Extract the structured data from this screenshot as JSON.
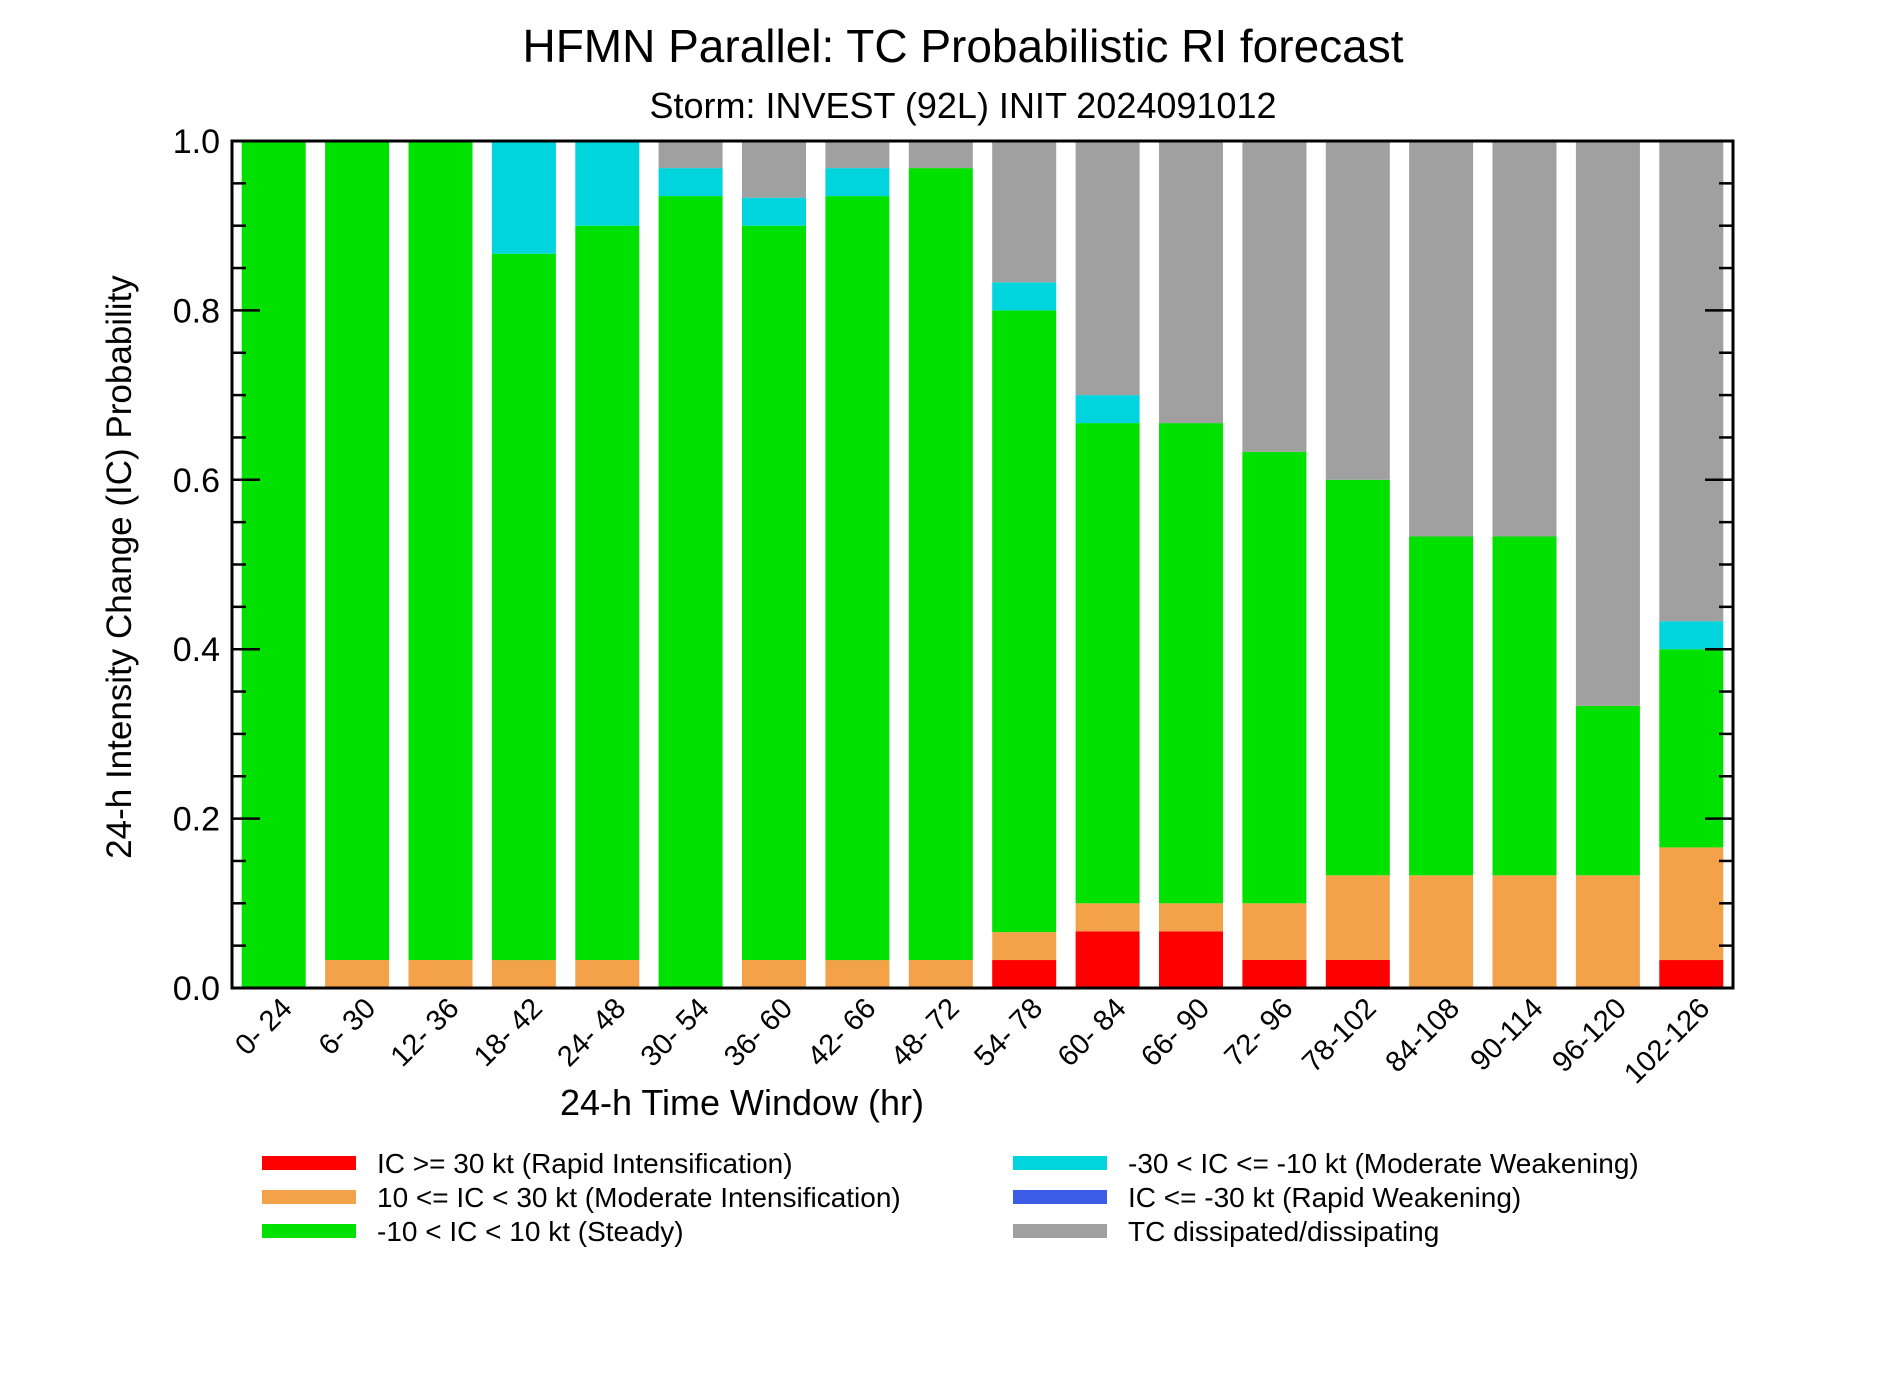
{
  "chart_data": {
    "type": "bar",
    "stacked": true,
    "title": "HFMN Parallel: TC Probabilistic RI forecast",
    "subtitle": "Storm: INVEST (92L) INIT 2024091012",
    "xlabel": "24-h Time Window (hr)",
    "ylabel": "24-h Intensity Change (IC) Probability",
    "ylim": [
      0,
      1.0
    ],
    "yticks": [
      "0.0",
      "0.2",
      "0.4",
      "0.6",
      "0.8",
      "1.0"
    ],
    "grid": false,
    "legend_position": "bottom",
    "categories": [
      "0- 24",
      "6- 30",
      "12- 36",
      "18- 42",
      "24- 48",
      "30- 54",
      "36- 60",
      "42- 66",
      "48- 72",
      "54- 78",
      "60- 84",
      "66- 90",
      "72- 96",
      "78-102",
      "84-108",
      "90-114",
      "96-120",
      "102-126"
    ],
    "series": [
      {
        "name": "IC >= 30 kt (Rapid Intensification)",
        "color": "#ff0000",
        "values": [
          0,
          0,
          0,
          0,
          0,
          0,
          0,
          0,
          0,
          0.033,
          0.067,
          0.067,
          0.033,
          0.033,
          0,
          0,
          0,
          0.033
        ]
      },
      {
        "name": "10 <= IC < 30 kt (Moderate Intensification)",
        "color": "#f4a24a",
        "values": [
          0,
          0.033,
          0.033,
          0.033,
          0.033,
          0,
          0.033,
          0.033,
          0.033,
          0.033,
          0.033,
          0.033,
          0.067,
          0.1,
          0.133,
          0.133,
          0.133,
          0.133
        ]
      },
      {
        "name": "-10 < IC < 10 kt (Steady)",
        "color": "#00e100",
        "values": [
          1.0,
          0.967,
          0.967,
          0.834,
          0.867,
          0.935,
          0.867,
          0.902,
          0.935,
          0.734,
          0.567,
          0.567,
          0.533,
          0.467,
          0.4,
          0.4,
          0.2,
          0.234
        ]
      },
      {
        "name": "-30 < IC <= -10 kt (Moderate Weakening)",
        "color": "#00d4dc",
        "values": [
          0,
          0,
          0,
          0.133,
          0.1,
          0.033,
          0.033,
          0.033,
          0,
          0.033,
          0.033,
          0,
          0,
          0,
          0,
          0,
          0,
          0.033
        ]
      },
      {
        "name": "IC <= -30 kt (Rapid Weakening)",
        "color": "#3a5ce6",
        "values": [
          0,
          0,
          0,
          0,
          0,
          0,
          0,
          0,
          0,
          0,
          0,
          0,
          0,
          0,
          0,
          0,
          0,
          0
        ]
      },
      {
        "name": "TC dissipated/dissipating",
        "color": "#a0a0a0",
        "values": [
          0,
          0,
          0,
          0,
          0,
          0.032,
          0.067,
          0.032,
          0.032,
          0.167,
          0.3,
          0.333,
          0.367,
          0.4,
          0.467,
          0.467,
          0.667,
          0.567
        ]
      }
    ]
  }
}
